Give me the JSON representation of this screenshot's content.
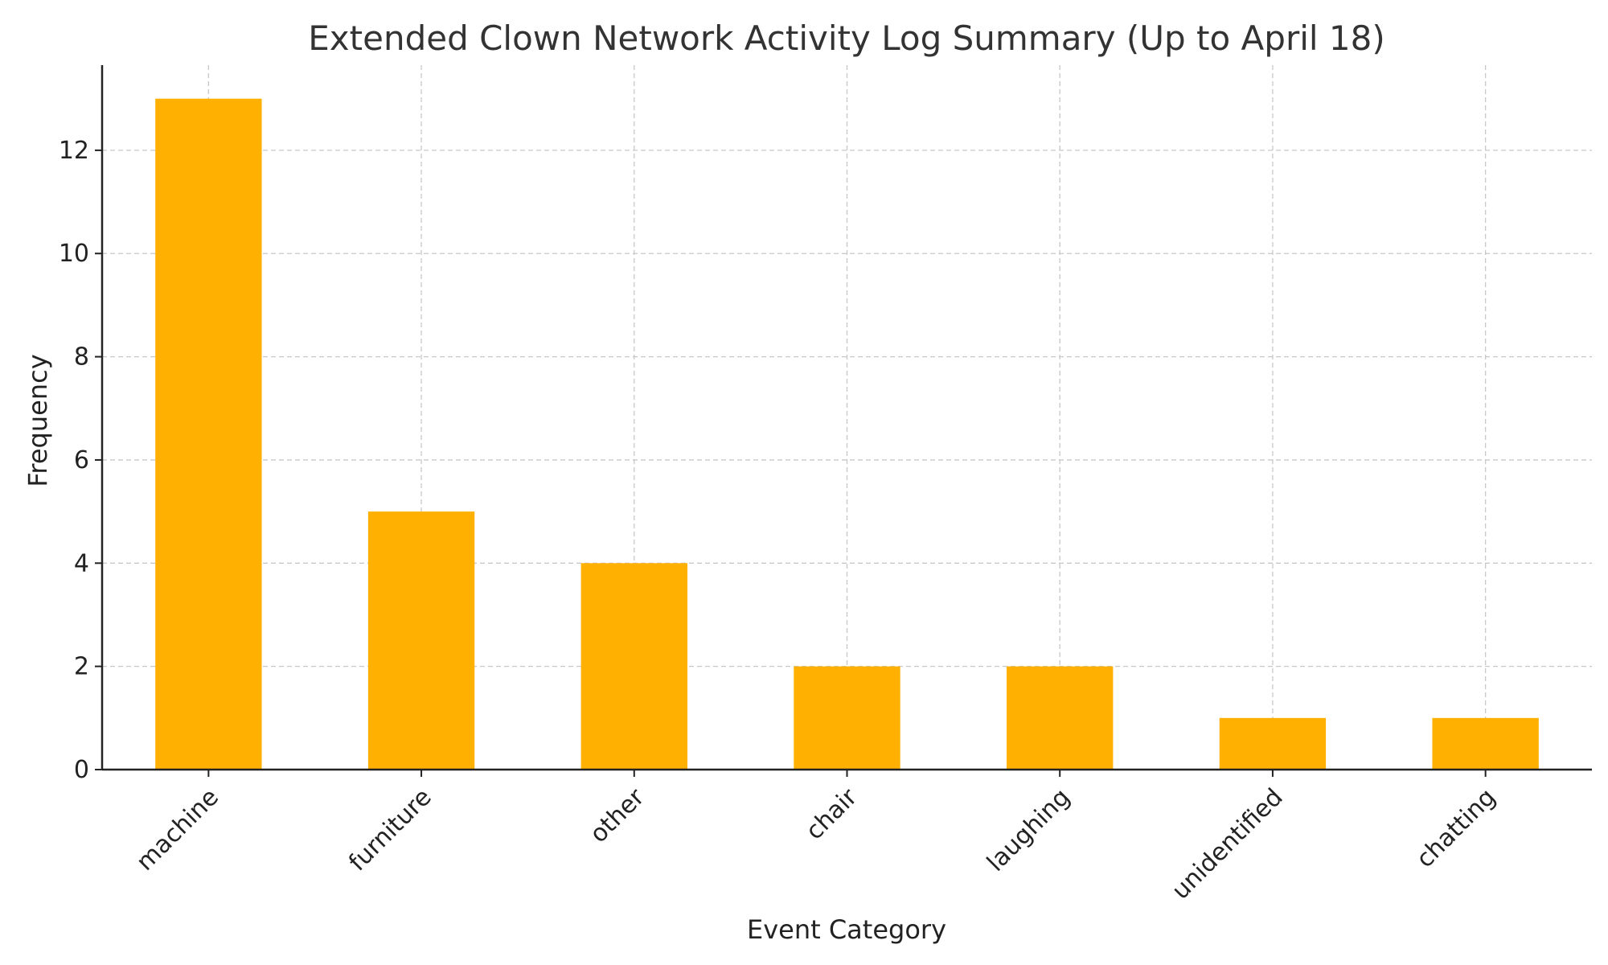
{
  "chart_data": {
    "type": "bar",
    "title": "Extended Clown Network Activity Log Summary (Up to April 18)",
    "xlabel": "Event Category",
    "ylabel": "Frequency",
    "categories": [
      "machine",
      "furniture",
      "other",
      "chair",
      "laughing",
      "unidentified",
      "chatting"
    ],
    "values": [
      13,
      5,
      4,
      2,
      2,
      1,
      1
    ],
    "ylim": [
      0,
      13.65
    ],
    "yticks": [
      0,
      2,
      4,
      6,
      8,
      10,
      12
    ],
    "grid": true,
    "grid_style": "dashed",
    "bar_color": "#FFB000",
    "tick_label_rotation": 45
  }
}
